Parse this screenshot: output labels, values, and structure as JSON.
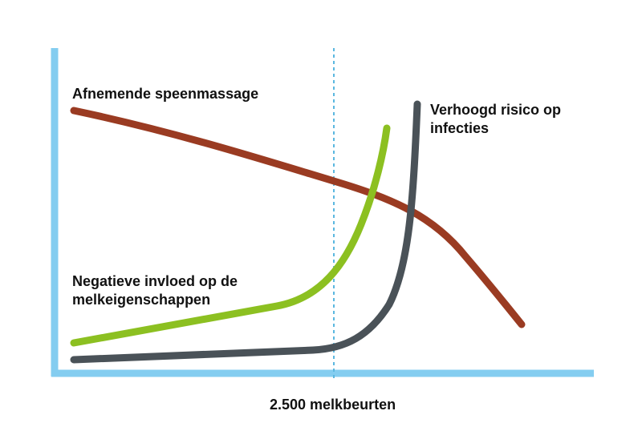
{
  "labels": {
    "speenmassage": "Afnemende speenmassage",
    "infecties_line1": "Verhoogd risico op",
    "infecties_line2": "infecties",
    "melk_line1": "Negatieve invloed op de",
    "melk_line2": "melkeigenschappen",
    "threshold": "2.500 melkbeurten"
  },
  "colors": {
    "axis": "#84cdf0",
    "threshold_line": "#5bb8e0",
    "speenmassage": "#9a3b22",
    "melkeigenschappen": "#8cc021",
    "infecties": "#4a5258"
  }
}
